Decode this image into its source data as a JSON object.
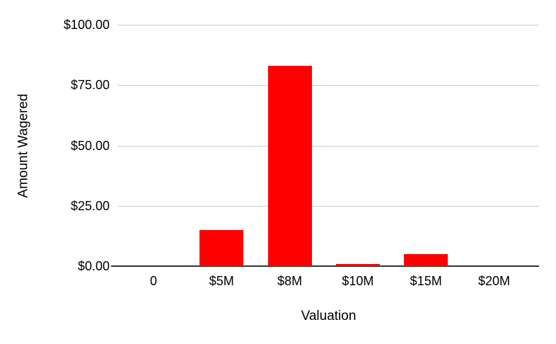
{
  "chart_data": {
    "type": "bar",
    "title": "",
    "xlabel": "Valuation",
    "ylabel": "Amount Wagered",
    "categories": [
      "0",
      "$5M",
      "$8M",
      "$10M",
      "$15M",
      "$20M"
    ],
    "values": [
      0,
      15,
      83,
      1,
      5,
      0
    ],
    "ylim": [
      0,
      100
    ],
    "yticks": [
      {
        "label": "$0.00",
        "value": 0
      },
      {
        "label": "$25.00",
        "value": 25
      },
      {
        "label": "$50.00",
        "value": 50
      },
      {
        "label": "$75.00",
        "value": 75
      },
      {
        "label": "$100.00",
        "value": 100
      }
    ],
    "grid": true,
    "legend_position": "none",
    "bar_color": "#ff0000",
    "gridline_color": "#cccccc",
    "axis_line_color": "#333333",
    "text_color": "#000000",
    "background_color": "#ffffff"
  }
}
